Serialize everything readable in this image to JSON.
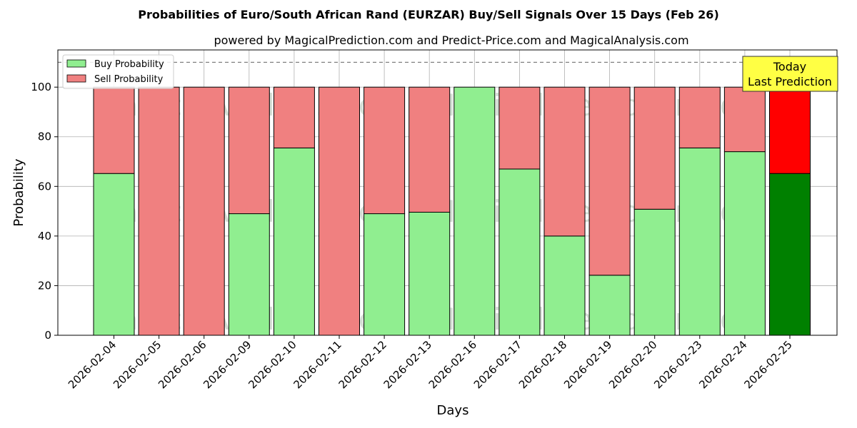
{
  "chart_data": {
    "type": "bar",
    "stacked": true,
    "title": "Probabilities of Euro/South African Rand (EURZAR) Buy/Sell Signals Over 15 Days (Feb 26)",
    "subtitle": "powered by MagicalPrediction.com and Predict-Price.com and MagicalAnalysis.com",
    "xlabel": "Days",
    "ylabel": "Probability",
    "ylim": [
      0,
      115
    ],
    "yticks": [
      0,
      20,
      40,
      60,
      80,
      100
    ],
    "grid": true,
    "legend_position": "top-left",
    "reference_line": 110,
    "categories": [
      "2026-02-04",
      "2026-02-05",
      "2026-02-06",
      "2026-02-09",
      "2026-02-10",
      "2026-02-11",
      "2026-02-12",
      "2026-02-13",
      "2026-02-16",
      "2026-02-17",
      "2026-02-18",
      "2026-02-19",
      "2026-02-20",
      "2026-02-23",
      "2026-02-24",
      "2026-02-25"
    ],
    "series": [
      {
        "name": "Buy Probability",
        "color": "#90ee90",
        "highlight_color": "#008000",
        "values": [
          65.2,
          0,
          0,
          49,
          75.5,
          0,
          49,
          49.6,
          100,
          67,
          40,
          24.2,
          50.8,
          75.5,
          74,
          65.2
        ]
      },
      {
        "name": "Sell Probability",
        "color": "#f08080",
        "highlight_color": "#ff0000",
        "values": [
          34.8,
          100,
          100,
          51,
          24.5,
          100,
          51,
          50.4,
          0,
          33,
          60,
          75.8,
          49.2,
          24.5,
          26,
          34.8
        ]
      }
    ],
    "highlight_index": 15,
    "annotation": {
      "lines": [
        "Today",
        "Last Prediction"
      ],
      "color": "#ffff44"
    },
    "watermarks": [
      "MagicalAnalysis.com",
      "MagicalPrediction.com"
    ]
  }
}
